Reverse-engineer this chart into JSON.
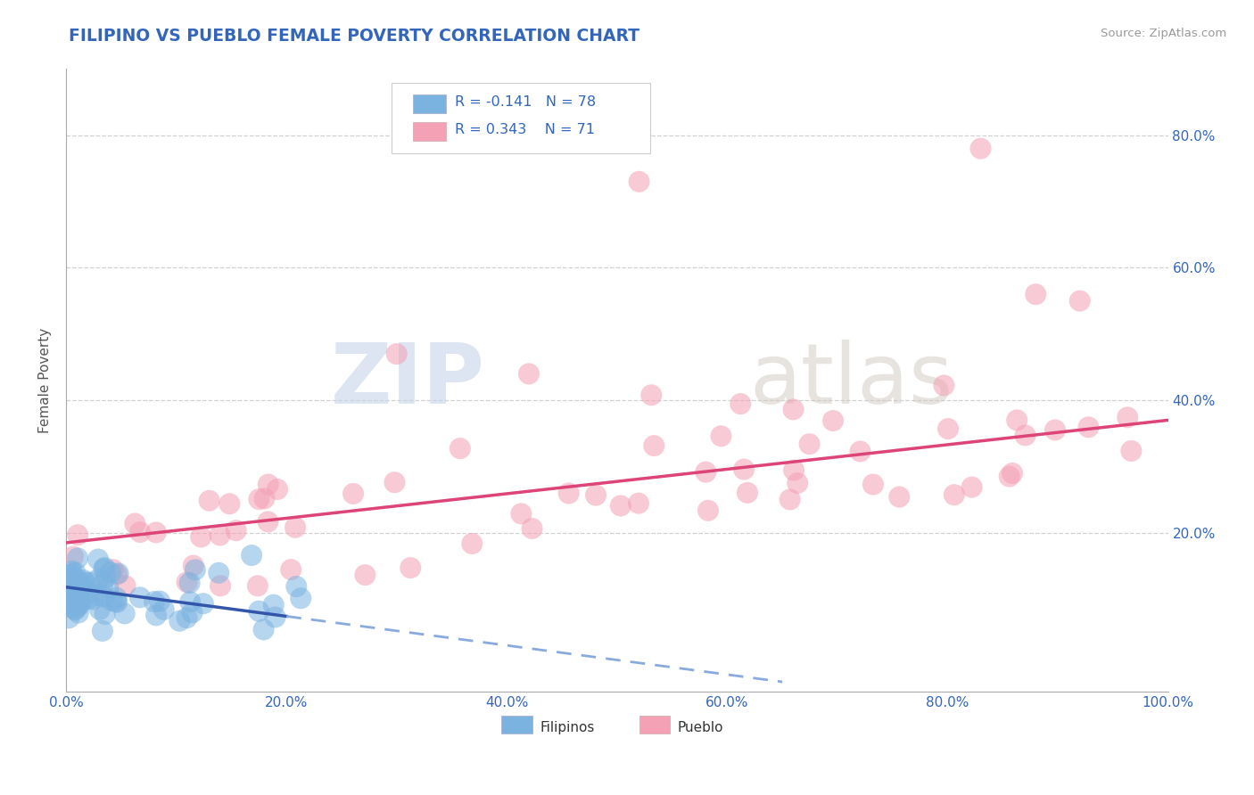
{
  "title": "FILIPINO VS PUEBLO FEMALE POVERTY CORRELATION CHART",
  "source": "Source: ZipAtlas.com",
  "ylabel": "Female Poverty",
  "xlim": [
    0,
    1.0
  ],
  "ylim": [
    -0.04,
    0.9
  ],
  "xtick_vals": [
    0.0,
    0.2,
    0.4,
    0.6,
    0.8,
    1.0
  ],
  "xtick_labels": [
    "0.0%",
    "20.0%",
    "40.0%",
    "60.0%",
    "80.0%",
    "100.0%"
  ],
  "ytick_vals": [
    0.2,
    0.4,
    0.6,
    0.8
  ],
  "ytick_labels": [
    "20.0%",
    "40.0%",
    "60.0%",
    "80.0%"
  ],
  "grid_color": "#cccccc",
  "background_color": "#ffffff",
  "filipino_color": "#7ab3e0",
  "pueblo_color": "#f4a0b5",
  "filipino_R": -0.141,
  "filipino_N": 78,
  "pueblo_R": 0.343,
  "pueblo_N": 71,
  "watermark_zip": "ZIP",
  "watermark_atlas": "atlas",
  "title_color": "#3366bb",
  "tick_label_color": "#3366bb",
  "legend_R_color": "#3366bb",
  "filipino_trend_solid_color": "#3355aa",
  "filipino_trend_dash_color": "#88aadd",
  "pueblo_trend_color": "#dd4477",
  "ylabel_color": "#555555"
}
